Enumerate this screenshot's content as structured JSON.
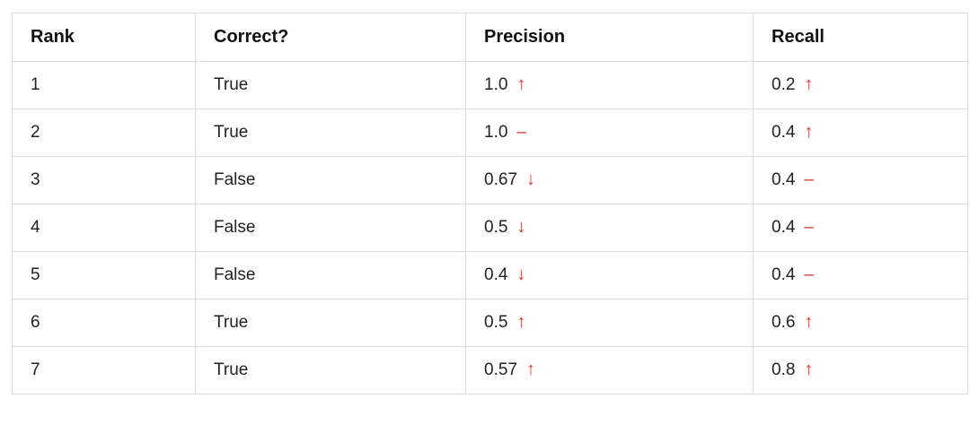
{
  "table": {
    "headers": [
      "Rank",
      "Correct?",
      "Precision",
      "Recall"
    ],
    "rows": [
      {
        "rank": "1",
        "correct": "True",
        "precision": "1.0",
        "precision_trend": "↑",
        "recall": "0.2",
        "recall_trend": "↑"
      },
      {
        "rank": "2",
        "correct": "True",
        "precision": "1.0",
        "precision_trend": "–",
        "recall": "0.4",
        "recall_trend": "↑"
      },
      {
        "rank": "3",
        "correct": "False",
        "precision": "0.67",
        "precision_trend": "↓",
        "recall": "0.4",
        "recall_trend": "–"
      },
      {
        "rank": "4",
        "correct": "False",
        "precision": "0.5",
        "precision_trend": "↓",
        "recall": "0.4",
        "recall_trend": "–"
      },
      {
        "rank": "5",
        "correct": "False",
        "precision": "0.4",
        "precision_trend": "↓",
        "recall": "0.4",
        "recall_trend": "–"
      },
      {
        "rank": "6",
        "correct": "True",
        "precision": "0.5",
        "precision_trend": "↑",
        "recall": "0.6",
        "recall_trend": "↑"
      },
      {
        "rank": "7",
        "correct": "True",
        "precision": "0.57",
        "precision_trend": "↑",
        "recall": "0.8",
        "recall_trend": "↑"
      }
    ]
  },
  "colors": {
    "arrow": "#d93a2b",
    "border": "#dcdcdc",
    "text": "#222222"
  }
}
